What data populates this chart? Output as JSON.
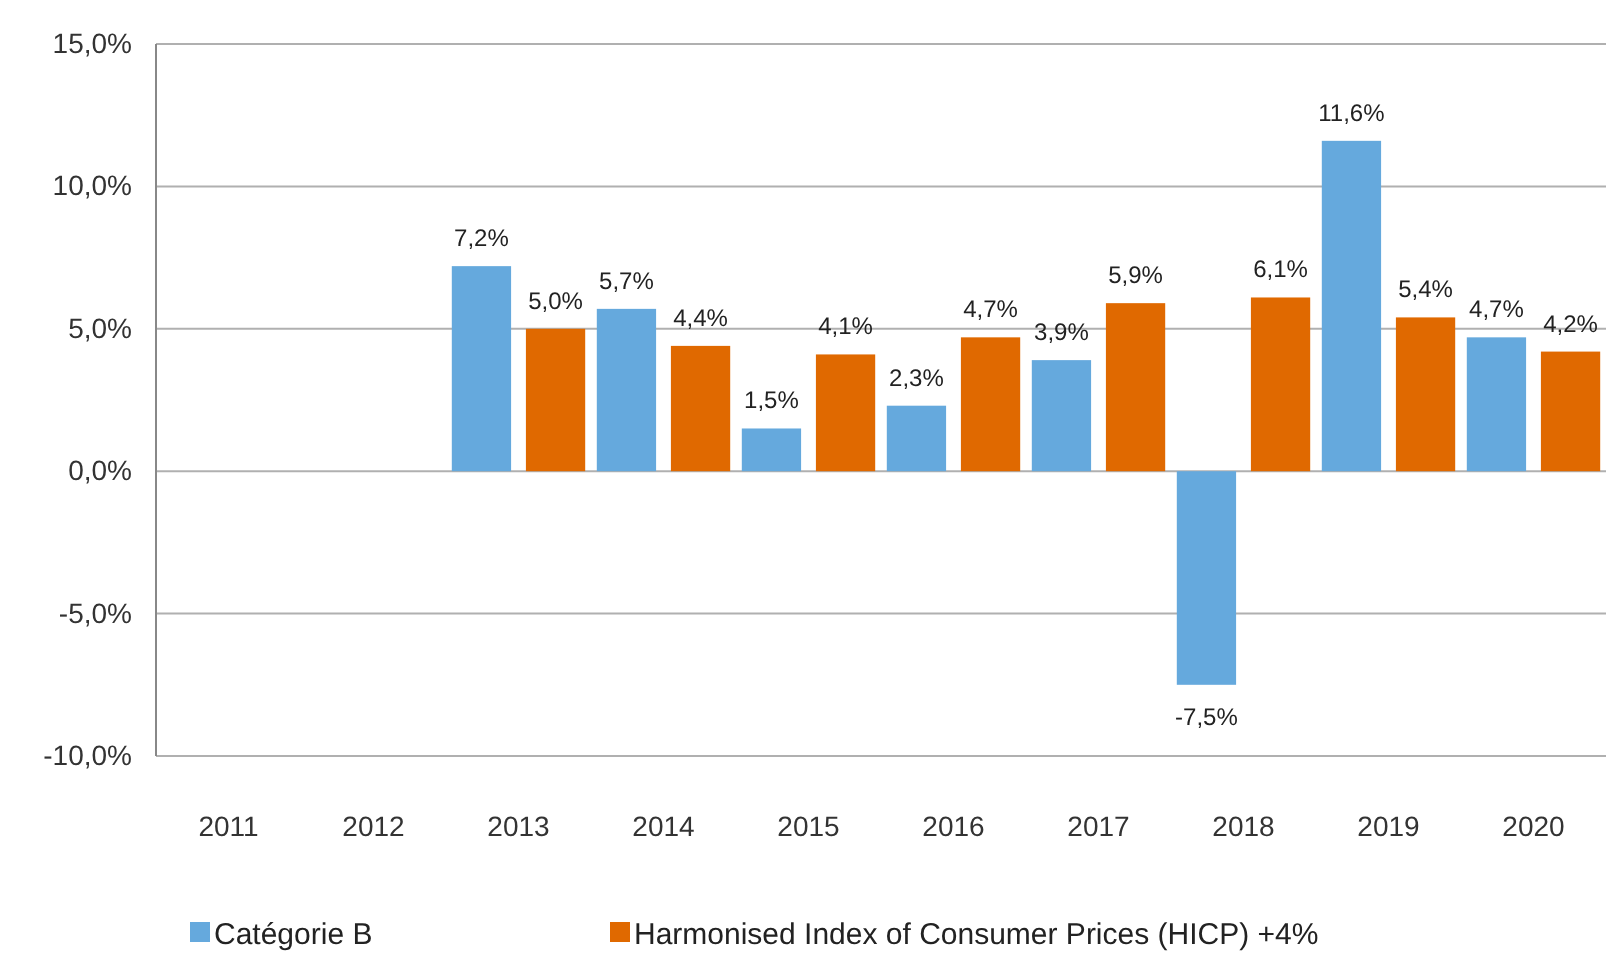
{
  "chart_data": {
    "type": "bar",
    "categories": [
      "2011",
      "2012",
      "2013",
      "2014",
      "2015",
      "2016",
      "2017",
      "2018",
      "2019",
      "2020"
    ],
    "series": [
      {
        "name": "Catégorie B",
        "color": "#65a9dd",
        "values": [
          null,
          null,
          7.2,
          5.7,
          1.5,
          2.3,
          3.9,
          -7.5,
          11.6,
          4.7
        ],
        "value_labels": [
          null,
          null,
          "7,2%",
          "5,7%",
          "1,5%",
          "2,3%",
          "3,9%",
          "-7,5%",
          "11,6%",
          "4,7%"
        ]
      },
      {
        "name": "Harmonised Index of Consumer Prices (HICP) +4%",
        "color": "#e06900",
        "values": [
          null,
          null,
          5.0,
          4.4,
          4.1,
          4.7,
          5.9,
          6.1,
          5.4,
          4.2
        ],
        "value_labels": [
          null,
          null,
          "5,0%",
          "4,4%",
          "4,1%",
          "4,7%",
          "5,9%",
          "6,1%",
          "5,4%",
          "4,2%"
        ]
      }
    ],
    "ylim": [
      -10,
      15
    ],
    "yticks": [
      {
        "value": -10,
        "label": "-10,0%"
      },
      {
        "value": -5,
        "label": "-5,0%"
      },
      {
        "value": 0,
        "label": "0,0%"
      },
      {
        "value": 5,
        "label": "5,0%"
      },
      {
        "value": 10,
        "label": "10,0%"
      },
      {
        "value": 15,
        "label": "15,0%"
      }
    ],
    "grid": "y",
    "legend": "bottom"
  }
}
